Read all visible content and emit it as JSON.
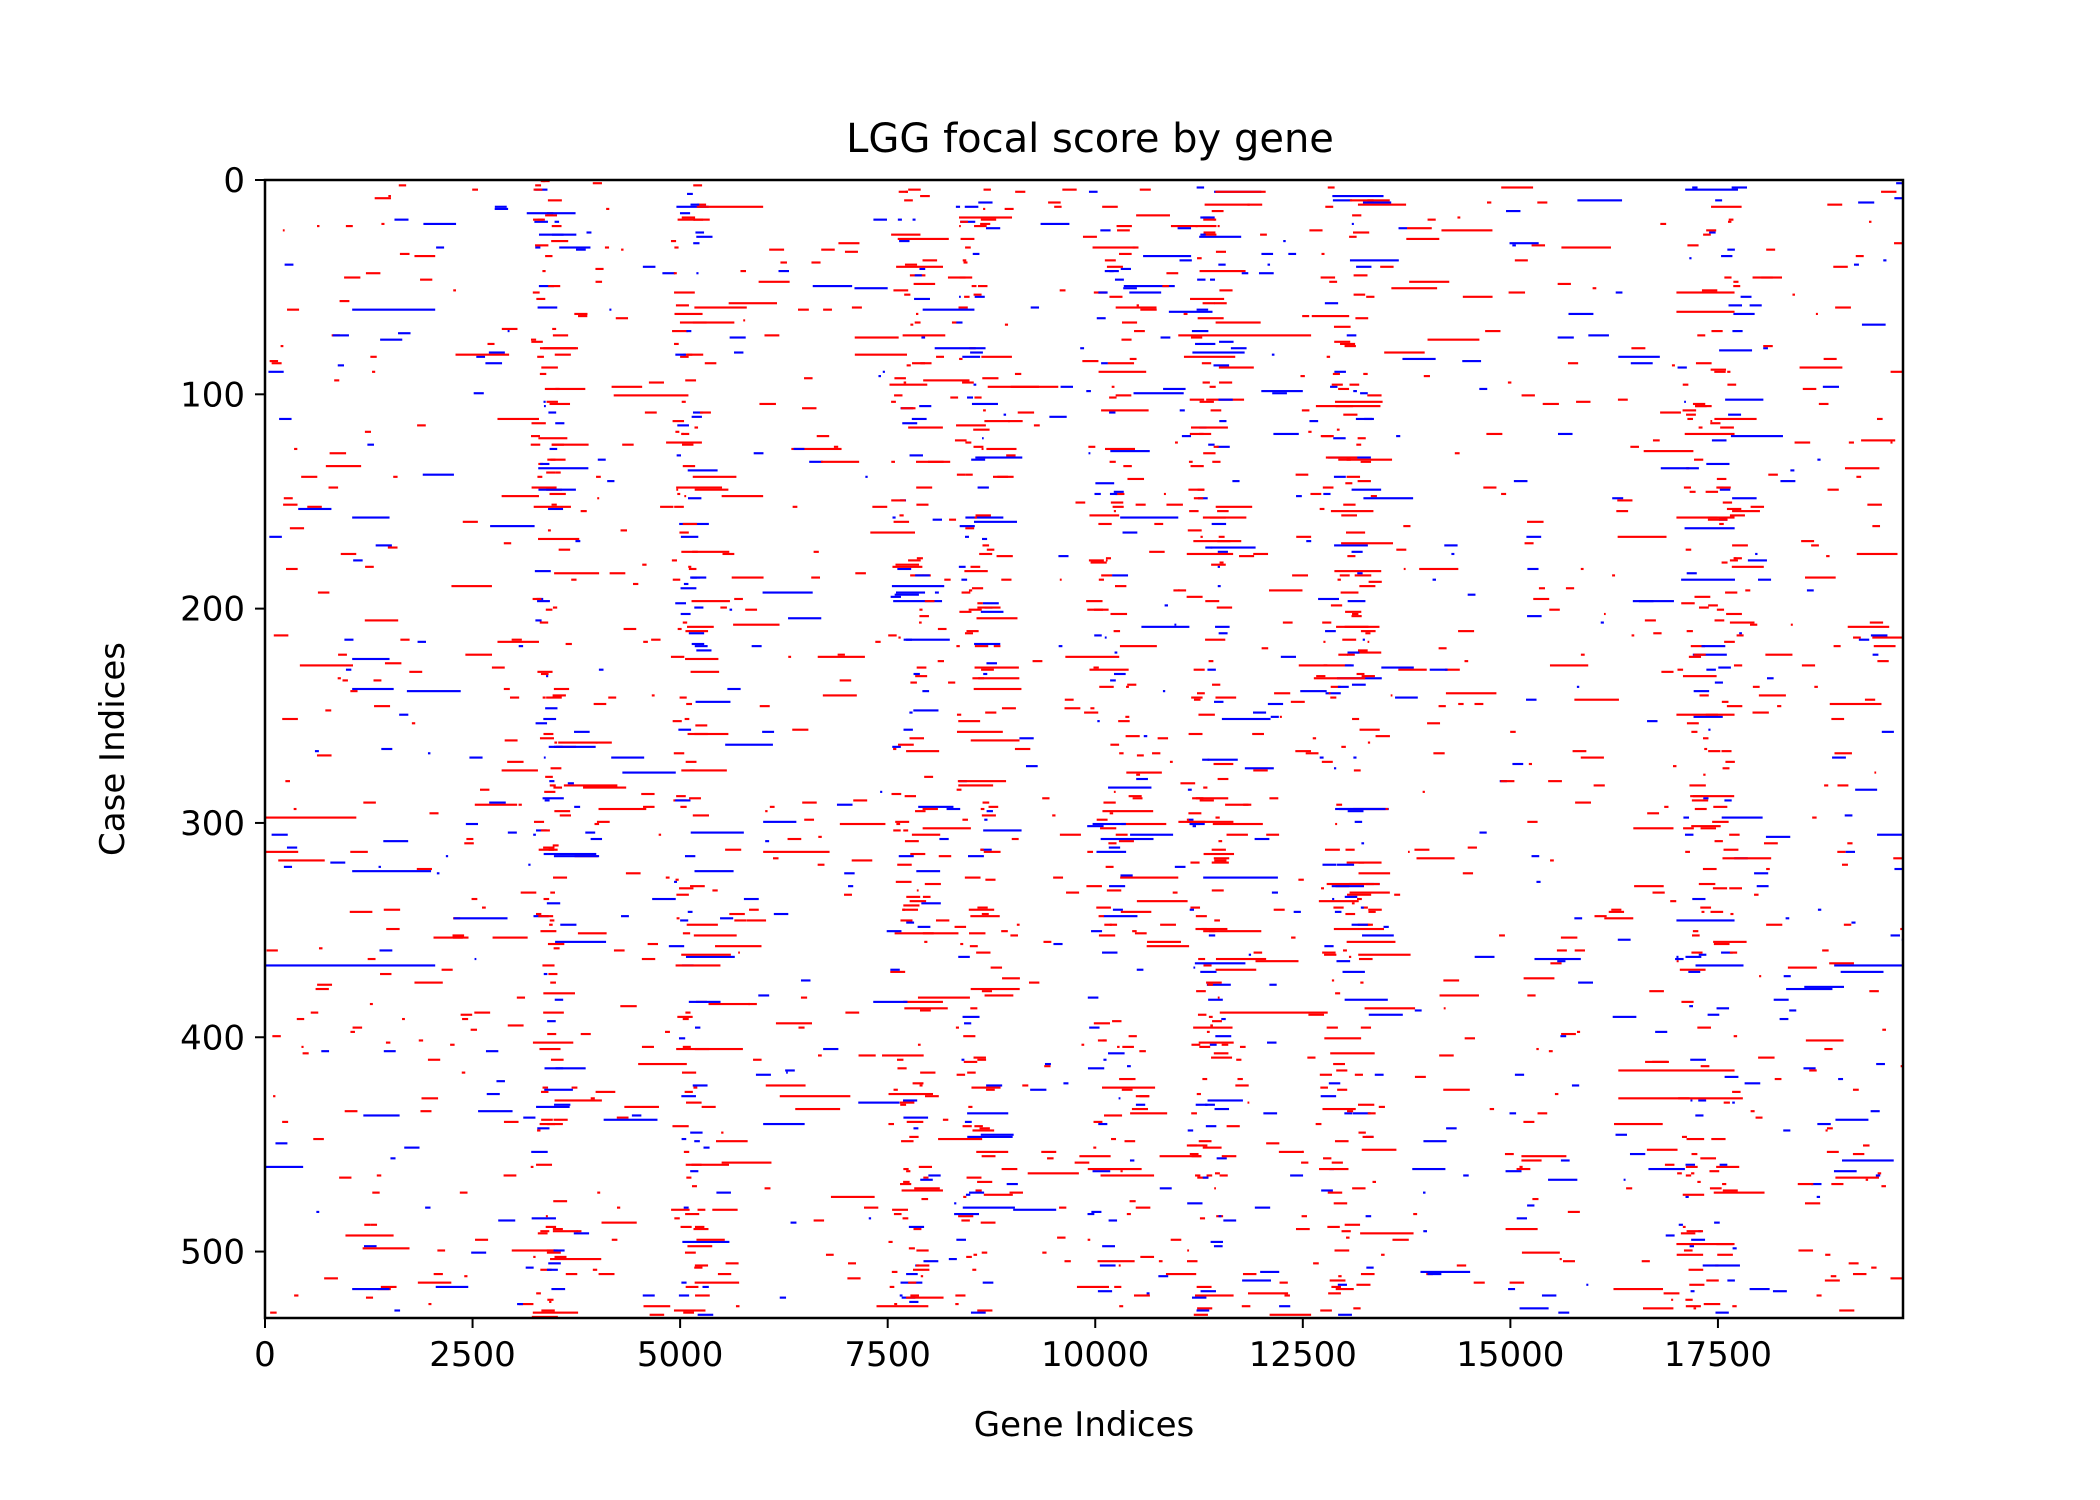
{
  "chart_data": {
    "type": "heatmap",
    "title": "LGG focal score by gene",
    "xlabel": "Gene Indices",
    "ylabel": "Case Indices",
    "xlim": [
      0,
      19729
    ],
    "ylim": [
      531,
      0
    ],
    "x_ticks": [
      0,
      2500,
      5000,
      7500,
      10000,
      12500,
      15000,
      17500
    ],
    "y_ticks": [
      0,
      100,
      200,
      300,
      400,
      500
    ],
    "x_tick_labels": [
      "0",
      "2500",
      "5000",
      "7500",
      "10000",
      "12500",
      "15000",
      "17500"
    ],
    "y_tick_labels": [
      "0",
      "100",
      "200",
      "300",
      "400",
      "500"
    ],
    "value_colors": {
      "amplification": "#ff0000",
      "deletion": "#0000ff",
      "neutral": "#ffffff"
    },
    "grid": false,
    "legend": "none",
    "segments": [
      {
        "case": 12,
        "gene_start": 5200,
        "gene_end": 6000,
        "value": 1
      },
      {
        "case": 25,
        "gene_start": 3300,
        "gene_end": 3750,
        "value": -1
      },
      {
        "case": 35,
        "gene_start": 1800,
        "gene_end": 2050,
        "value": 1
      },
      {
        "case": 50,
        "gene_start": 7100,
        "gene_end": 7500,
        "value": -1
      },
      {
        "case": 52,
        "gene_start": 17000,
        "gene_end": 17700,
        "value": 1
      },
      {
        "case": 60,
        "gene_start": 1050,
        "gene_end": 2050,
        "value": -1
      },
      {
        "case": 61,
        "gene_start": 17000,
        "gene_end": 17700,
        "value": 1
      },
      {
        "case": 62,
        "gene_start": 15700,
        "gene_end": 16000,
        "value": -1
      },
      {
        "case": 72,
        "gene_start": 11000,
        "gene_end": 12600,
        "value": 1
      },
      {
        "case": 82,
        "gene_start": 16300,
        "gene_end": 16800,
        "value": -1
      },
      {
        "case": 83,
        "gene_start": 13700,
        "gene_end": 14100,
        "value": -1
      },
      {
        "case": 98,
        "gene_start": 12000,
        "gene_end": 12500,
        "value": -1
      },
      {
        "case": 100,
        "gene_start": 4200,
        "gene_end": 5100,
        "value": 1
      },
      {
        "case": 111,
        "gene_start": 2800,
        "gene_end": 3300,
        "value": 1
      },
      {
        "case": 118,
        "gene_start": 17100,
        "gene_end": 17700,
        "value": 1
      },
      {
        "case": 147,
        "gene_start": 2850,
        "gene_end": 3300,
        "value": 1
      },
      {
        "case": 147,
        "gene_start": 5500,
        "gene_end": 6000,
        "value": 1
      },
      {
        "case": 153,
        "gene_start": 400,
        "gene_end": 800,
        "value": -1
      },
      {
        "case": 157,
        "gene_start": 1050,
        "gene_end": 1500,
        "value": -1
      },
      {
        "case": 157,
        "gene_start": 10300,
        "gene_end": 11000,
        "value": -1
      },
      {
        "case": 157,
        "gene_start": 17000,
        "gene_end": 17700,
        "value": 1
      },
      {
        "case": 192,
        "gene_start": 7600,
        "gene_end": 7950,
        "value": -1
      },
      {
        "case": 204,
        "gene_start": 6300,
        "gene_end": 6700,
        "value": -1
      },
      {
        "case": 215,
        "gene_start": 2800,
        "gene_end": 3300,
        "value": 1
      },
      {
        "case": 223,
        "gene_start": 1050,
        "gene_end": 1500,
        "value": -1
      },
      {
        "case": 237,
        "gene_start": 1050,
        "gene_end": 1550,
        "value": -1
      },
      {
        "case": 249,
        "gene_start": 17000,
        "gene_end": 17700,
        "value": 1
      },
      {
        "case": 297,
        "gene_start": 0,
        "gene_end": 1100,
        "value": 1
      },
      {
        "case": 299,
        "gene_start": 6000,
        "gene_end": 6400,
        "value": -1
      },
      {
        "case": 313,
        "gene_start": 0,
        "gene_end": 400,
        "value": 1
      },
      {
        "case": 313,
        "gene_start": 6000,
        "gene_end": 6800,
        "value": 1
      },
      {
        "case": 322,
        "gene_start": 1050,
        "gene_end": 2000,
        "value": -1
      },
      {
        "case": 325,
        "gene_start": 10300,
        "gene_end": 11000,
        "value": 1
      },
      {
        "case": 325,
        "gene_start": 11300,
        "gene_end": 12200,
        "value": -1
      },
      {
        "case": 345,
        "gene_start": 17000,
        "gene_end": 17700,
        "value": -1
      },
      {
        "case": 350,
        "gene_start": 11300,
        "gene_end": 12000,
        "value": 1
      },
      {
        "case": 366,
        "gene_start": 0,
        "gene_end": 2050,
        "value": -1
      },
      {
        "case": 366,
        "gene_start": 18900,
        "gene_end": 19729,
        "value": -1
      },
      {
        "case": 388,
        "gene_start": 11500,
        "gene_end": 12800,
        "value": 1
      },
      {
        "case": 415,
        "gene_start": 16300,
        "gene_end": 17700,
        "value": 1
      },
      {
        "case": 427,
        "gene_start": 6200,
        "gene_end": 7050,
        "value": 1
      },
      {
        "case": 428,
        "gene_start": 16300,
        "gene_end": 17800,
        "value": 1
      },
      {
        "case": 440,
        "gene_start": 6000,
        "gene_end": 6500,
        "value": -1
      },
      {
        "case": 458,
        "gene_start": 5500,
        "gene_end": 6100,
        "value": 1
      },
      {
        "case": 482,
        "gene_start": 8300,
        "gene_end": 8600,
        "value": -1
      },
      {
        "case": 496,
        "gene_start": 17000,
        "gene_end": 17700,
        "value": 1
      },
      {
        "case": 517,
        "gene_start": 1050,
        "gene_end": 1500,
        "value": -1
      },
      {
        "case": 529,
        "gene_start": 12100,
        "gene_end": 12600,
        "value": 1
      }
    ]
  }
}
